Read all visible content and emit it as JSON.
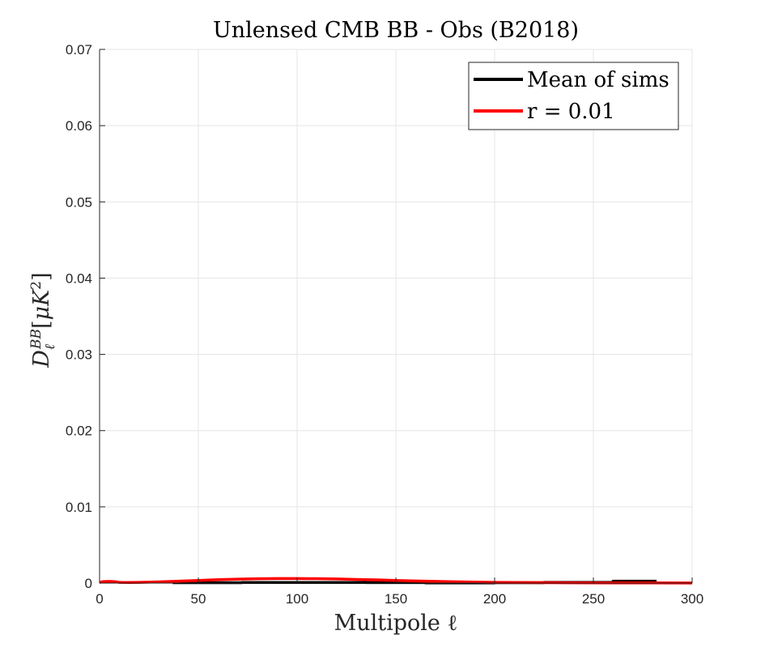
{
  "chart_data": {
    "type": "line",
    "title": "Unlensed CMB BB - Obs (B2018)",
    "xlabel": "Multipole ℓ",
    "ylabel": "D_ℓ^BB [μK²]",
    "xlim": [
      0,
      300
    ],
    "ylim": [
      0,
      0.07
    ],
    "xticks": [
      0,
      50,
      100,
      150,
      200,
      250,
      300
    ],
    "yticks": [
      0,
      0.01,
      0.02,
      0.03,
      0.04,
      0.05,
      0.06,
      0.07
    ],
    "xtick_labels": [
      "0",
      "50",
      "100",
      "150",
      "200",
      "250",
      "300"
    ],
    "ytick_labels": [
      "0",
      "0.01",
      "0.02",
      "0.03",
      "0.04",
      "0.05",
      "0.06",
      "0.07"
    ],
    "grid": true,
    "legend_position": "top-right",
    "series": [
      {
        "name": "Mean of sims",
        "color": "#000000",
        "style": "step",
        "x": [
          37,
          72,
          105,
          135,
          165,
          200,
          225,
          260,
          282
        ],
        "y": [
          5e-05,
          7e-05,
          8e-05,
          6e-05,
          2e-05,
          5e-05,
          0.0001,
          0.00025,
          0.00025
        ]
      },
      {
        "name": "r = 0.01",
        "color": "#ff0000",
        "style": "line",
        "x": [
          0,
          2,
          5,
          8,
          10,
          15,
          20,
          30,
          40,
          50,
          60,
          70,
          80,
          90,
          100,
          110,
          120,
          130,
          140,
          150,
          160,
          170,
          180,
          190,
          200,
          220,
          240,
          260,
          280,
          300
        ],
        "y": [
          0.0001,
          0.0002,
          0.00022,
          0.00018,
          0.0001,
          8e-05,
          0.0001,
          0.00016,
          0.00025,
          0.00035,
          0.00045,
          0.00052,
          0.00057,
          0.0006,
          0.0006,
          0.00058,
          0.00054,
          0.00048,
          0.00042,
          0.00035,
          0.00028,
          0.00022,
          0.00017,
          0.00013,
          0.0001,
          6e-05,
          4e-05,
          3e-05,
          2e-05,
          1e-05
        ]
      }
    ]
  }
}
